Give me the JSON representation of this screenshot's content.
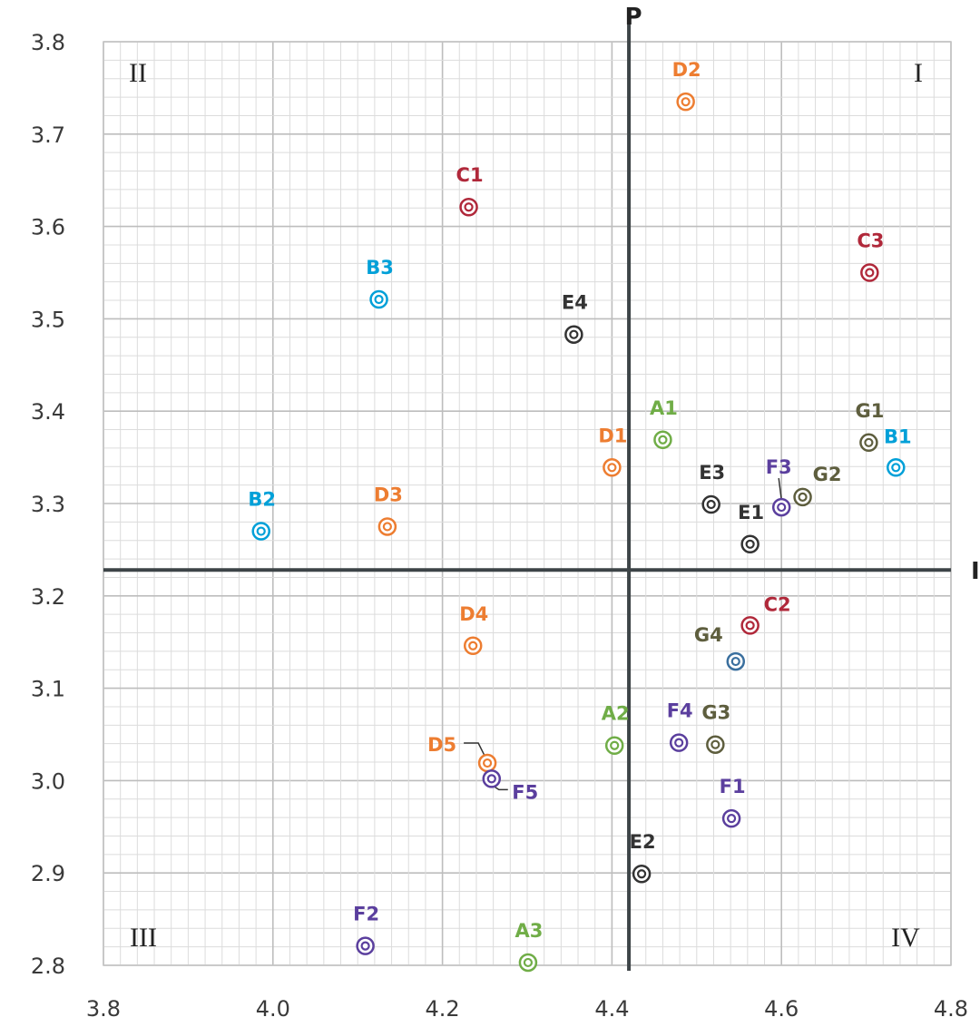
{
  "chart_data": {
    "type": "scatter",
    "title": "",
    "xlabel": "",
    "ylabel": "",
    "xlim": [
      3.8,
      4.8
    ],
    "ylim": [
      2.8,
      3.8
    ],
    "x_ticks": [
      "3.8",
      "4.0",
      "4.2",
      "4.4",
      "4.6",
      "4.8"
    ],
    "y_ticks": [
      "2.8",
      "2.9",
      "3.0",
      "3.1",
      "3.2",
      "3.3",
      "3.4",
      "3.5",
      "3.6",
      "3.7",
      "3.8"
    ],
    "grid": true,
    "marker": "double-circle",
    "reference_lines": {
      "vertical": {
        "x": 4.42,
        "label": "P"
      },
      "horizontal": {
        "y": 3.228,
        "label": "I"
      }
    },
    "quadrant_labels": {
      "q1": "I",
      "q2": "II",
      "q3": "III",
      "q4": "IV"
    },
    "group_colors": {
      "A": "#70ad47",
      "B": "#00a0d8",
      "C": "#b0283a",
      "D": "#ed7d31",
      "E": "#333333",
      "F": "#5b3f9e",
      "G": "#5e5e3e"
    },
    "points": [
      {
        "label": "A1",
        "group": "A",
        "x": 4.46,
        "y": 3.369
      },
      {
        "label": "A2",
        "group": "A",
        "x": 4.403,
        "y": 3.038
      },
      {
        "label": "A3",
        "group": "A",
        "x": 4.301,
        "y": 2.803
      },
      {
        "label": "B1",
        "group": "B",
        "x": 4.735,
        "y": 3.339
      },
      {
        "label": "B2",
        "group": "B",
        "x": 3.986,
        "y": 3.27
      },
      {
        "label": "B3",
        "group": "B",
        "x": 4.125,
        "y": 3.521
      },
      {
        "label": "C1",
        "group": "C",
        "x": 4.231,
        "y": 3.621
      },
      {
        "label": "C2",
        "group": "C",
        "x": 4.563,
        "y": 3.168
      },
      {
        "label": "C3",
        "group": "C",
        "x": 4.704,
        "y": 3.55
      },
      {
        "label": "D1",
        "group": "D",
        "x": 4.4,
        "y": 3.339
      },
      {
        "label": "D2",
        "group": "D",
        "x": 4.487,
        "y": 3.735
      },
      {
        "label": "D3",
        "group": "D",
        "x": 4.135,
        "y": 3.275
      },
      {
        "label": "D4",
        "group": "D",
        "x": 4.236,
        "y": 3.146
      },
      {
        "label": "D5",
        "group": "D",
        "x": 4.253,
        "y": 3.019
      },
      {
        "label": "E1",
        "group": "E",
        "x": 4.563,
        "y": 3.256
      },
      {
        "label": "E2",
        "group": "E",
        "x": 4.435,
        "y": 2.899
      },
      {
        "label": "E3",
        "group": "E",
        "x": 4.517,
        "y": 3.299
      },
      {
        "label": "E4",
        "group": "E",
        "x": 4.355,
        "y": 3.483
      },
      {
        "label": "F1",
        "group": "F",
        "x": 4.541,
        "y": 2.959
      },
      {
        "label": "F2",
        "group": "F",
        "x": 4.109,
        "y": 2.821
      },
      {
        "label": "F3",
        "group": "F",
        "x": 4.6,
        "y": 3.296
      },
      {
        "label": "F4",
        "group": "F",
        "x": 4.479,
        "y": 3.041
      },
      {
        "label": "F5",
        "group": "F",
        "x": 4.258,
        "y": 3.002
      },
      {
        "label": "G1",
        "group": "G",
        "x": 4.703,
        "y": 3.366
      },
      {
        "label": "G2",
        "group": "G",
        "x": 4.625,
        "y": 3.307
      },
      {
        "label": "G3",
        "group": "G",
        "x": 4.522,
        "y": 3.039
      },
      {
        "label": "G4",
        "group": "G",
        "x": 4.546,
        "y": 3.129,
        "marker_color": "#3a6f9e"
      }
    ]
  }
}
